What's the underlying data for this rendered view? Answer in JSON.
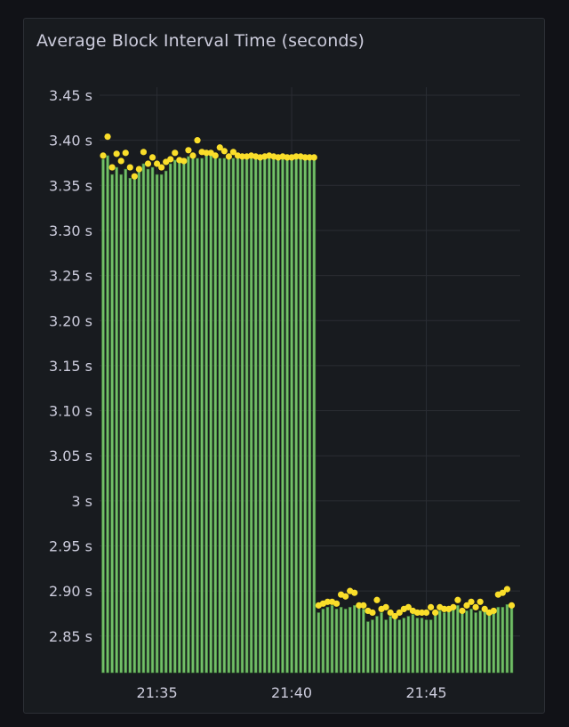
{
  "panel": {
    "title": "Average Block Interval Time (seconds)"
  },
  "colors": {
    "background": "#111217",
    "panel_bg": "#181b1f",
    "grid": "#2a2d33",
    "bar_fill": "#73bf69",
    "bar_stroke": "#3d7a36",
    "point": "#fade2a",
    "text": "#ccccdc"
  },
  "chart_data": {
    "type": "bar",
    "title": "Average Block Interval Time (seconds)",
    "y_unit": "s",
    "ylim": [
      2.82,
      3.46
    ],
    "y_ticks": [
      {
        "value": 3.45,
        "label": "3.45 s"
      },
      {
        "value": 3.4,
        "label": "3.40 s"
      },
      {
        "value": 3.35,
        "label": "3.35 s"
      },
      {
        "value": 3.3,
        "label": "3.30 s"
      },
      {
        "value": 3.25,
        "label": "3.25 s"
      },
      {
        "value": 3.2,
        "label": "3.20 s"
      },
      {
        "value": 3.15,
        "label": "3.15 s"
      },
      {
        "value": 3.1,
        "label": "3.10 s"
      },
      {
        "value": 3.05,
        "label": "3.05 s"
      },
      {
        "value": 3.0,
        "label": "3 s"
      },
      {
        "value": 2.95,
        "label": "2.95 s"
      },
      {
        "value": 2.9,
        "label": "2.90 s"
      },
      {
        "value": 2.85,
        "label": "2.85 s"
      }
    ],
    "x_start": "21:33:00",
    "x_end": "21:48:15",
    "x_ticks": [
      {
        "time": "21:35",
        "label": "21:35"
      },
      {
        "time": "21:40",
        "label": "21:40"
      },
      {
        "time": "21:45",
        "label": "21:45"
      }
    ],
    "grid": true,
    "legend": "none",
    "series": [
      {
        "type": "bar",
        "times": [
          "21:33:00",
          "21:33:10",
          "21:33:20",
          "21:33:30",
          "21:33:40",
          "21:33:50",
          "21:34:00",
          "21:34:10",
          "21:34:20",
          "21:34:30",
          "21:34:40",
          "21:34:50",
          "21:35:00",
          "21:35:10",
          "21:35:20",
          "21:35:30",
          "21:35:40",
          "21:35:50",
          "21:36:00",
          "21:36:10",
          "21:36:20",
          "21:36:30",
          "21:36:40",
          "21:36:50",
          "21:37:00",
          "21:37:10",
          "21:37:20",
          "21:37:30",
          "21:37:40",
          "21:37:50",
          "21:38:00",
          "21:38:10",
          "21:38:20",
          "21:38:30",
          "21:38:40",
          "21:38:50",
          "21:39:00",
          "21:39:10",
          "21:39:20",
          "21:39:30",
          "21:39:40",
          "21:39:50",
          "21:40:00",
          "21:40:10",
          "21:40:20",
          "21:40:30",
          "21:40:40",
          "21:40:50",
          "21:41:00",
          "21:41:10",
          "21:41:20",
          "21:41:30",
          "21:41:40",
          "21:41:50",
          "21:42:00",
          "21:42:10",
          "21:42:20",
          "21:42:30",
          "21:42:40",
          "21:42:50",
          "21:43:00",
          "21:43:10",
          "21:43:20",
          "21:43:30",
          "21:43:40",
          "21:43:50",
          "21:44:00",
          "21:44:10",
          "21:44:20",
          "21:44:30",
          "21:44:40",
          "21:44:50",
          "21:45:00",
          "21:45:10",
          "21:45:20",
          "21:45:30",
          "21:45:40",
          "21:45:50",
          "21:46:00",
          "21:46:10",
          "21:46:20",
          "21:46:30",
          "21:46:40",
          "21:46:50",
          "21:47:00",
          "21:47:10",
          "21:47:20",
          "21:47:30",
          "21:47:40",
          "21:47:50",
          "21:48:00",
          "21:48:10"
        ],
        "values": [
          3.379,
          3.383,
          3.362,
          3.37,
          3.362,
          3.368,
          3.358,
          3.36,
          3.366,
          3.374,
          3.368,
          3.37,
          3.362,
          3.362,
          3.366,
          3.374,
          3.378,
          3.376,
          3.38,
          3.382,
          3.384,
          3.38,
          3.38,
          3.388,
          3.384,
          3.38,
          3.38,
          3.38,
          3.38,
          3.38,
          3.38,
          3.38,
          3.38,
          3.38,
          3.38,
          3.38,
          3.38,
          3.38,
          3.38,
          3.38,
          3.38,
          3.38,
          3.38,
          3.38,
          3.38,
          3.38,
          3.38,
          3.38,
          2.876,
          2.88,
          2.882,
          2.884,
          2.88,
          2.882,
          2.88,
          2.882,
          2.884,
          2.882,
          2.88,
          2.866,
          2.868,
          2.872,
          2.876,
          2.868,
          2.872,
          2.874,
          2.868,
          2.87,
          2.872,
          2.874,
          2.87,
          2.87,
          2.868,
          2.868,
          2.874,
          2.878,
          2.876,
          2.878,
          2.884,
          2.884,
          2.876,
          2.878,
          2.88,
          2.876,
          2.878,
          2.88,
          2.876,
          2.878,
          2.882,
          2.882,
          2.885,
          2.885
        ]
      },
      {
        "type": "points",
        "times": [
          "21:33:00",
          "21:33:10",
          "21:33:20",
          "21:33:30",
          "21:33:40",
          "21:33:50",
          "21:34:00",
          "21:34:10",
          "21:34:20",
          "21:34:30",
          "21:34:40",
          "21:34:50",
          "21:35:00",
          "21:35:10",
          "21:35:20",
          "21:35:30",
          "21:35:40",
          "21:35:50",
          "21:36:00",
          "21:36:10",
          "21:36:20",
          "21:36:30",
          "21:36:40",
          "21:36:50",
          "21:37:00",
          "21:37:10",
          "21:37:20",
          "21:37:30",
          "21:37:40",
          "21:37:50",
          "21:38:00",
          "21:38:10",
          "21:38:20",
          "21:38:30",
          "21:38:40",
          "21:38:50",
          "21:39:00",
          "21:39:10",
          "21:39:20",
          "21:39:30",
          "21:39:40",
          "21:39:50",
          "21:40:00",
          "21:40:10",
          "21:40:20",
          "21:40:30",
          "21:40:40",
          "21:40:50",
          "21:41:00",
          "21:41:10",
          "21:41:20",
          "21:41:30",
          "21:41:40",
          "21:41:50",
          "21:42:00",
          "21:42:10",
          "21:42:20",
          "21:42:30",
          "21:42:40",
          "21:42:50",
          "21:43:00",
          "21:43:10",
          "21:43:20",
          "21:43:30",
          "21:43:40",
          "21:43:50",
          "21:44:00",
          "21:44:10",
          "21:44:20",
          "21:44:30",
          "21:44:40",
          "21:44:50",
          "21:45:00",
          "21:45:10",
          "21:45:20",
          "21:45:30",
          "21:45:40",
          "21:45:50",
          "21:46:00",
          "21:46:10",
          "21:46:20",
          "21:46:30",
          "21:46:40",
          "21:46:50",
          "21:47:00",
          "21:47:10",
          "21:47:20",
          "21:47:30",
          "21:47:40",
          "21:47:50",
          "21:48:00",
          "21:48:10"
        ],
        "values": [
          3.383,
          3.404,
          3.37,
          3.385,
          3.377,
          3.386,
          3.37,
          3.36,
          3.368,
          3.387,
          3.374,
          3.381,
          3.374,
          3.37,
          3.376,
          3.379,
          3.386,
          3.378,
          3.377,
          3.389,
          3.383,
          3.4,
          3.387,
          3.386,
          3.386,
          3.383,
          3.392,
          3.388,
          3.382,
          3.387,
          3.383,
          3.382,
          3.382,
          3.383,
          3.382,
          3.381,
          3.382,
          3.383,
          3.382,
          3.381,
          3.382,
          3.381,
          3.381,
          3.382,
          3.382,
          3.381,
          3.381,
          3.381,
          2.884,
          2.886,
          2.888,
          2.888,
          2.886,
          2.896,
          2.894,
          2.9,
          2.898,
          2.884,
          2.884,
          2.878,
          2.876,
          2.89,
          2.88,
          2.882,
          2.876,
          2.872,
          2.876,
          2.88,
          2.882,
          2.878,
          2.876,
          2.876,
          2.876,
          2.882,
          2.876,
          2.882,
          2.88,
          2.88,
          2.882,
          2.89,
          2.878,
          2.884,
          2.888,
          2.882,
          2.888,
          2.88,
          2.876,
          2.878,
          2.896,
          2.898,
          2.902,
          2.884
        ]
      }
    ]
  }
}
